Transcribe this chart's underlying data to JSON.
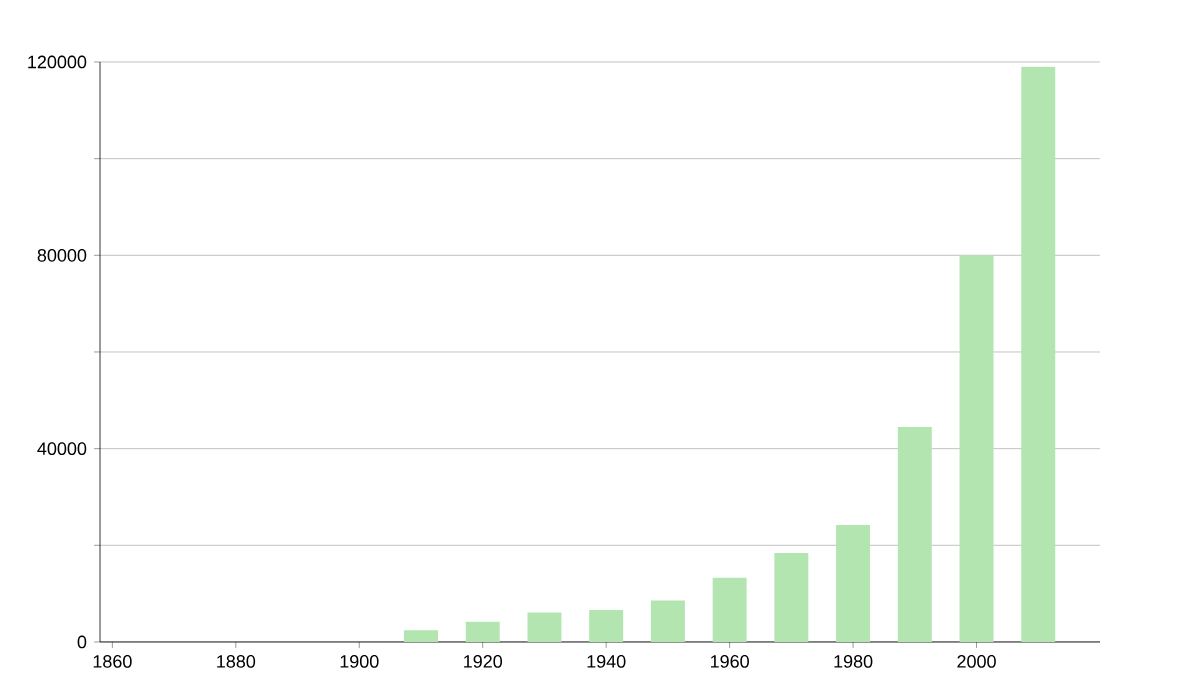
{
  "chart_data": {
    "type": "bar",
    "x": [
      1910,
      1920,
      1930,
      1940,
      1950,
      1960,
      1970,
      1980,
      1990,
      2000,
      2010
    ],
    "values": [
      2400,
      4200,
      6100,
      6600,
      8600,
      13300,
      18400,
      24200,
      44500,
      80000,
      119000
    ],
    "color": "#b3e5b0",
    "xlim": [
      1858,
      2020
    ],
    "xticks": [
      1860,
      1880,
      1900,
      1920,
      1940,
      1960,
      1980,
      2000
    ],
    "ylim": [
      0,
      120000
    ],
    "yticks": [
      0,
      {
        "value": 20000,
        "label": null
      },
      40000,
      {
        "value": 60000,
        "label": null
      },
      80000,
      {
        "value": 100000,
        "label": null
      },
      120000
    ],
    "grid": "y"
  }
}
